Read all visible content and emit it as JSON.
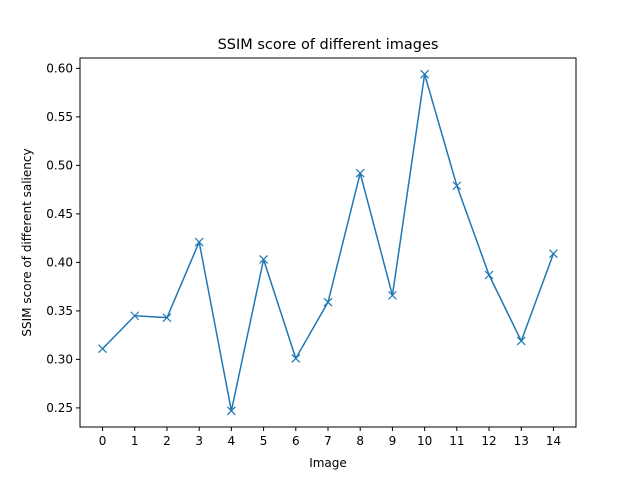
{
  "chart_data": {
    "type": "line",
    "title": "SSIM score of different images",
    "xlabel": "Image",
    "ylabel": "SSIM score of different saliency",
    "x": [
      0,
      1,
      2,
      3,
      4,
      5,
      6,
      7,
      8,
      9,
      10,
      11,
      12,
      13,
      14
    ],
    "series": [
      {
        "values": [
          0.311,
          0.345,
          0.343,
          0.421,
          0.247,
          0.403,
          0.301,
          0.359,
          0.492,
          0.366,
          0.594,
          0.479,
          0.387,
          0.319,
          0.409
        ],
        "color": "#1f77b4",
        "marker": "x"
      }
    ],
    "xlim": [
      -0.7,
      14.7
    ],
    "ylim": [
      0.2303,
      0.6107
    ],
    "xticks": [
      0,
      1,
      2,
      3,
      4,
      5,
      6,
      7,
      8,
      9,
      10,
      11,
      12,
      13,
      14
    ],
    "yticks": [
      0.25,
      0.3,
      0.35,
      0.4,
      0.45,
      0.5,
      0.55,
      0.6
    ],
    "ytick_labels": [
      "0.25",
      "0.30",
      "0.35",
      "0.40",
      "0.45",
      "0.50",
      "0.55",
      "0.60"
    ],
    "grid": false,
    "legend": "none"
  }
}
